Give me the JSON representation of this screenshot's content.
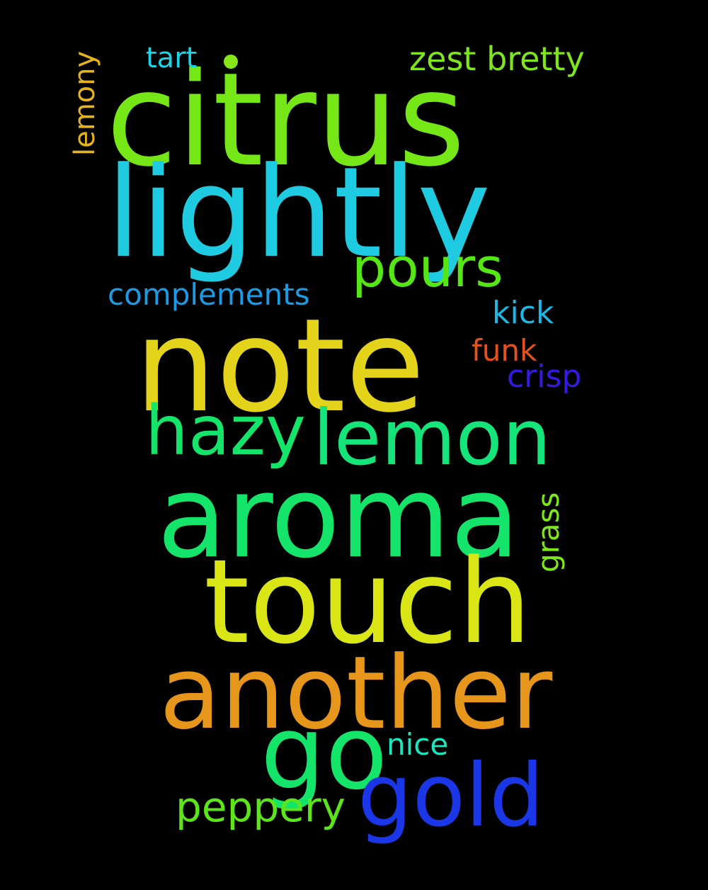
{
  "words": [
    {
      "id": "citrus",
      "text": "citrus",
      "color": "#75e616",
      "orientation": "horizontal"
    },
    {
      "id": "lightly",
      "text": "lightly",
      "color": "#1ecbe1",
      "orientation": "horizontal"
    },
    {
      "id": "note",
      "text": "note",
      "color": "#e3d31b",
      "orientation": "horizontal"
    },
    {
      "id": "aroma",
      "text": "aroma",
      "color": "#15e46a",
      "orientation": "horizontal"
    },
    {
      "id": "touch",
      "text": "touch",
      "color": "#d9e515",
      "orientation": "horizontal"
    },
    {
      "id": "another",
      "text": "another",
      "color": "#e6961a",
      "orientation": "horizontal"
    },
    {
      "id": "go",
      "text": "go",
      "color": "#15e46a",
      "orientation": "horizontal"
    },
    {
      "id": "gold",
      "text": "gold",
      "color": "#1a36e6",
      "orientation": "horizontal"
    },
    {
      "id": "lemon",
      "text": "lemon",
      "color": "#15e47a",
      "orientation": "horizontal"
    },
    {
      "id": "hazy",
      "text": "hazy",
      "color": "#15e46a",
      "orientation": "horizontal"
    },
    {
      "id": "pours",
      "text": "pours",
      "color": "#56e615",
      "orientation": "horizontal"
    },
    {
      "id": "peppery",
      "text": "peppery",
      "color": "#5ce61a",
      "orientation": "horizontal"
    },
    {
      "id": "complements",
      "text": "complements",
      "color": "#1a9be6",
      "orientation": "horizontal"
    },
    {
      "id": "kick",
      "text": "kick",
      "color": "#1ab8e6",
      "orientation": "horizontal"
    },
    {
      "id": "funk",
      "text": "funk",
      "color": "#e6521a",
      "orientation": "horizontal"
    },
    {
      "id": "crisp",
      "text": "crisp",
      "color": "#351ae6",
      "orientation": "horizontal"
    },
    {
      "id": "nice",
      "text": "nice",
      "color": "#1ae6c0",
      "orientation": "horizontal"
    },
    {
      "id": "tart",
      "text": "tart",
      "color": "#1ad5e6",
      "orientation": "horizontal"
    },
    {
      "id": "zest-bretty",
      "text": "zest bretty",
      "color": "#7ee61a",
      "orientation": "horizontal"
    },
    {
      "id": "lemony",
      "text": "lemony",
      "color": "#e6b41a",
      "orientation": "vertical"
    },
    {
      "id": "grass",
      "text": "grass",
      "color": "#7ee61a",
      "orientation": "vertical"
    }
  ],
  "dots": [
    {
      "id": "dot-1",
      "color": "#86e61a"
    }
  ],
  "background_color": "#000000"
}
